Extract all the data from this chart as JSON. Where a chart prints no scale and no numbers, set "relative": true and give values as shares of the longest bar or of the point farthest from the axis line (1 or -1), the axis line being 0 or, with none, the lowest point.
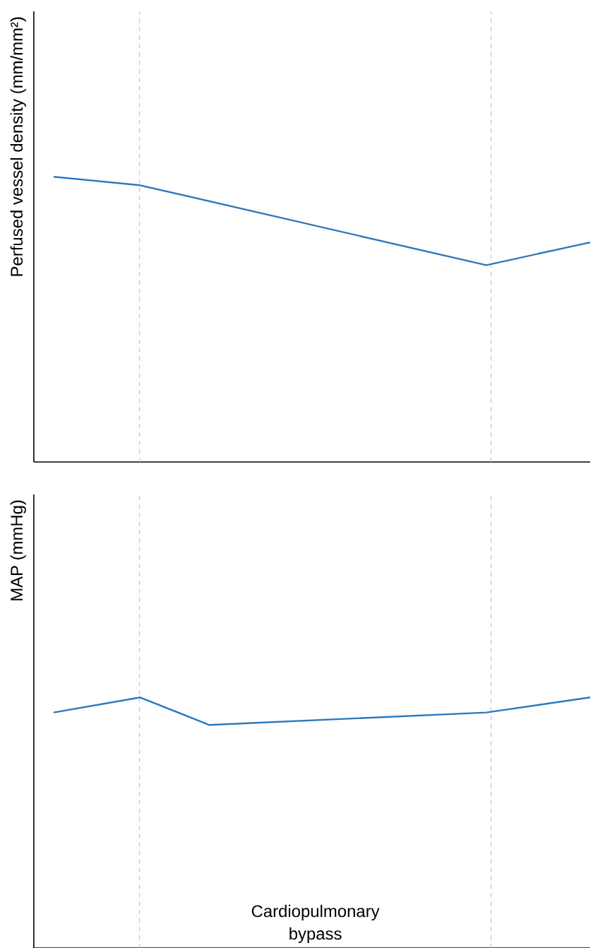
{
  "chart_data": [
    {
      "type": "line",
      "relative": true,
      "ylabel": "Perfused vessel density (mm/mm²)",
      "categories": [
        null,
        null,
        null,
        null,
        null,
        null,
        null,
        null,
        null,
        null,
        null,
        null,
        null,
        null,
        null,
        null,
        null,
        null,
        null,
        null,
        null,
        null,
        null,
        null,
        null,
        null,
        null,
        null,
        null,
        null,
        null,
        null
      ],
      "tick_labels": false,
      "series": [
        {
          "color": "#2b78be",
          "values": [
            1,
            null,
            null,
            null,
            null,
            0.97,
            null,
            null,
            null,
            null,
            null,
            null,
            null,
            null,
            null,
            null,
            null,
            null,
            null,
            null,
            null,
            null,
            null,
            null,
            null,
            0.69,
            null,
            null,
            null,
            null,
            null,
            0.77
          ]
        }
      ]
    },
    {
      "type": "line",
      "relative": true,
      "ylabel": "MAP (mmHg)",
      "categories": [
        null,
        null,
        null,
        null,
        null,
        null,
        null,
        null,
        null,
        null,
        null,
        null,
        null,
        null,
        null,
        null,
        null,
        null,
        null,
        null,
        null,
        null,
        null,
        null,
        null,
        null,
        null,
        null,
        null,
        null,
        null,
        null
      ],
      "tick_labels": false,
      "series": [
        {
          "color": "#2b78be",
          "values": [
            0.94,
            null,
            null,
            null,
            null,
            1,
            null,
            null,
            null,
            0.89,
            null,
            null,
            null,
            null,
            null,
            null,
            null,
            null,
            null,
            null,
            null,
            null,
            null,
            null,
            null,
            0.94,
            null,
            null,
            null,
            null,
            null,
            1
          ]
        }
      ],
      "annotations": [
        "Cardiopulmonary bypass"
      ]
    }
  ]
}
